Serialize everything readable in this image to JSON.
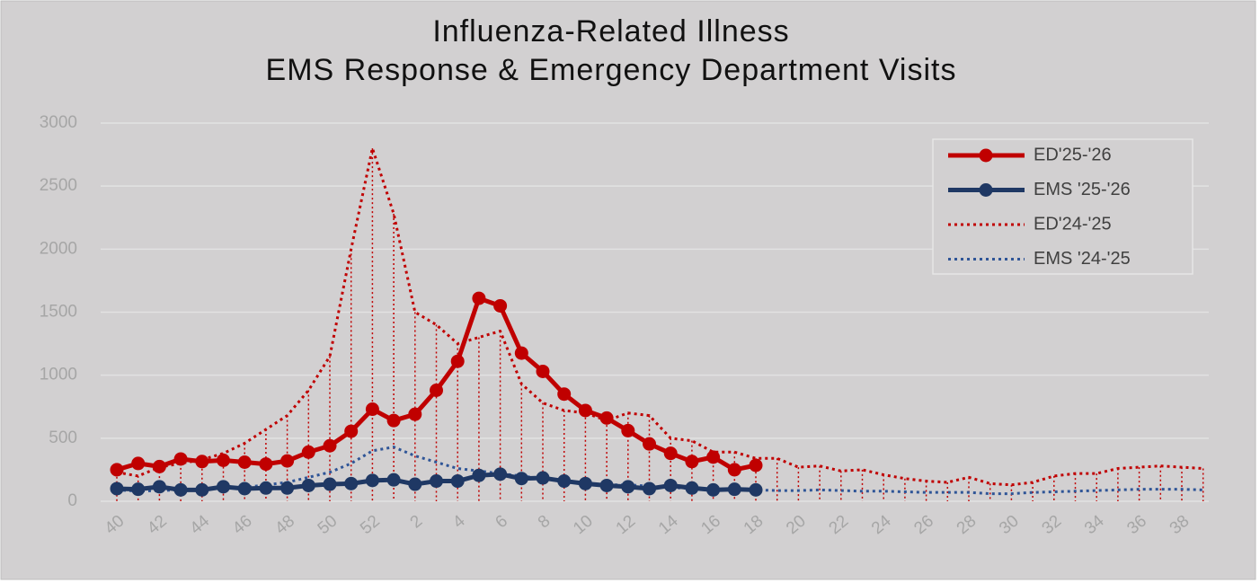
{
  "chart_data": {
    "type": "line",
    "title": [
      "Influenza-Related Illness",
      "EMS Response & Emergency Department Visits"
    ],
    "categories": [
      "40",
      null,
      "42",
      null,
      "44",
      null,
      "46",
      null,
      "48",
      null,
      "50",
      null,
      "52",
      null,
      "2",
      null,
      "4",
      null,
      "6",
      null,
      "8",
      null,
      "10",
      null,
      "12",
      null,
      "14",
      null,
      "16",
      null,
      "18",
      null,
      "20",
      null,
      "22",
      null,
      "24",
      null,
      "26",
      null,
      "28",
      null,
      "30",
      null,
      "32",
      null,
      "34",
      null,
      "36",
      null,
      "38",
      null
    ],
    "ylim": [
      0,
      3000
    ],
    "yticks": [
      0,
      500,
      1000,
      1500,
      2000,
      2500,
      3000
    ],
    "grid": true,
    "legend": "top-right",
    "series": [
      {
        "name": "ED'25-'26",
        "color": "#c00000",
        "style": "solid",
        "markers": true,
        "values": [
          250,
          300,
          275,
          335,
          315,
          325,
          310,
          295,
          320,
          390,
          440,
          555,
          730,
          640,
          690,
          880,
          1110,
          1610,
          1550,
          1175,
          1030,
          850,
          720,
          660,
          560,
          455,
          380,
          315,
          350,
          250,
          285,
          null,
          null,
          null,
          null,
          null,
          null,
          null,
          null,
          null,
          null,
          null,
          null,
          null,
          null,
          null,
          null,
          null,
          null,
          null,
          null,
          null
        ]
      },
      {
        "name": "EMS '25-'26",
        "color": "#1f3864",
        "style": "solid",
        "markers": true,
        "values": [
          100,
          95,
          115,
          90,
          90,
          115,
          100,
          105,
          105,
          125,
          135,
          140,
          165,
          170,
          135,
          160,
          160,
          205,
          215,
          180,
          185,
          160,
          140,
          125,
          115,
          100,
          125,
          105,
          90,
          95,
          90,
          null,
          null,
          null,
          null,
          null,
          null,
          null,
          null,
          null,
          null,
          null,
          null,
          null,
          null,
          null,
          null,
          null,
          null,
          null,
          null,
          null
        ]
      },
      {
        "name": "ED'24-'25",
        "color": "#c00000",
        "style": "dotted",
        "markers": false,
        "drop_lines": true,
        "values": [
          230,
          200,
          270,
          300,
          330,
          380,
          460,
          570,
          680,
          880,
          1150,
          2000,
          2800,
          2280,
          1500,
          1400,
          1250,
          1300,
          1350,
          930,
          780,
          720,
          700,
          640,
          700,
          680,
          500,
          480,
          390,
          390,
          340,
          340,
          270,
          280,
          240,
          250,
          210,
          180,
          160,
          150,
          190,
          140,
          130,
          150,
          200,
          220,
          220,
          260,
          270,
          280,
          270,
          260
        ]
      },
      {
        "name": "EMS '24-'25",
        "color": "#2f5597",
        "style": "dotted",
        "markers": false,
        "values": [
          90,
          80,
          85,
          90,
          95,
          100,
          110,
          130,
          150,
          190,
          230,
          300,
          400,
          430,
          360,
          310,
          260,
          240,
          220,
          200,
          180,
          160,
          140,
          130,
          130,
          120,
          110,
          100,
          100,
          95,
          90,
          85,
          85,
          90,
          85,
          80,
          80,
          75,
          70,
          70,
          70,
          60,
          60,
          70,
          75,
          80,
          85,
          90,
          95,
          95,
          95,
          90
        ]
      }
    ]
  }
}
